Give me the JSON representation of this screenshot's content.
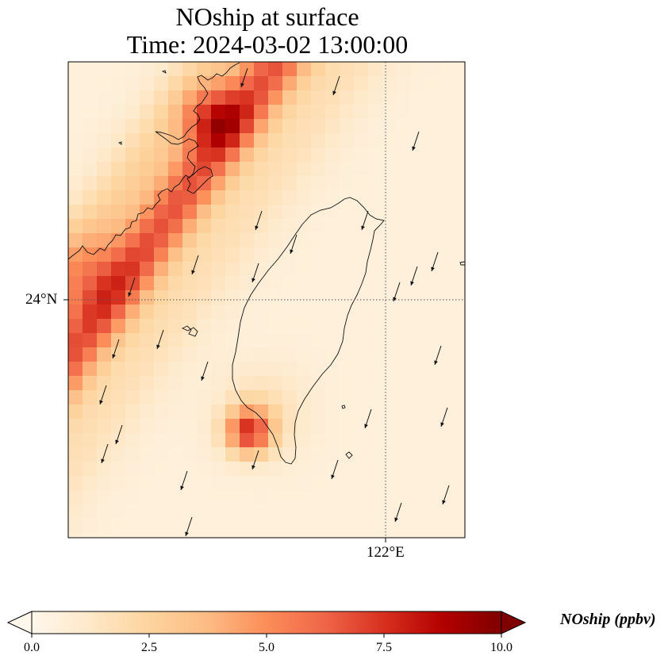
{
  "title": {
    "line1": "NOship at surface",
    "line2": "Time: 2024-03-02 13:00:00"
  },
  "map": {
    "lat_label": "24°N",
    "lon_label": "122°E",
    "region": "Taiwan Strait and Taiwan island",
    "variable": "NOship"
  },
  "colorbar": {
    "title": "NOship (ppbv)",
    "colormap": "OrRd",
    "range": [
      0.0,
      10.0
    ],
    "extend": "both",
    "ticks": [
      "0.0",
      "2.5",
      "5.0",
      "7.5",
      "10.0"
    ],
    "colors": [
      "#fff7ec",
      "#fee8c8",
      "#fdd49e",
      "#fdbb84",
      "#fc8d59",
      "#ef6548",
      "#d7301f",
      "#b30000",
      "#7f0000"
    ]
  }
}
